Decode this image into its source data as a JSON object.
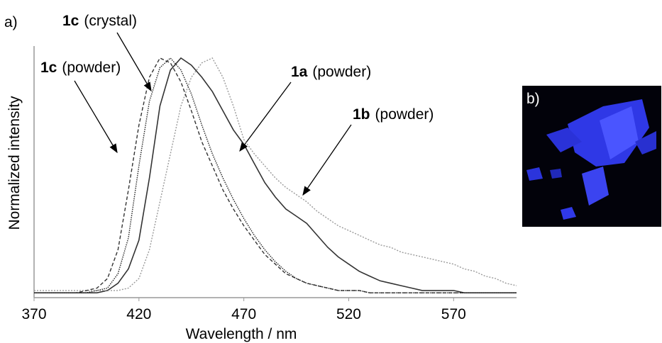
{
  "panel_a_label": "a)",
  "chart_data": {
    "type": "line",
    "x_label": "Wavelength / nm",
    "y_label": "Normalized intensity",
    "x": [
      370,
      375,
      380,
      385,
      390,
      395,
      400,
      405,
      410,
      415,
      420,
      425,
      430,
      435,
      440,
      445,
      450,
      455,
      460,
      465,
      470,
      475,
      480,
      485,
      490,
      495,
      500,
      505,
      510,
      515,
      520,
      525,
      530,
      535,
      540,
      545,
      550,
      555,
      560,
      565,
      570,
      575,
      580,
      585,
      590,
      595,
      600
    ],
    "xlim": [
      370,
      600
    ],
    "ylim": [
      0,
      1.05
    ],
    "xticks": [
      370,
      420,
      470,
      520,
      570
    ],
    "series": [
      {
        "name_bold": "1a",
        "name": "(powder)",
        "color": "#333333",
        "dash": "solid",
        "values": [
          0.02,
          0.02,
          0.02,
          0.02,
          0.02,
          0.02,
          0.02,
          0.03,
          0.06,
          0.12,
          0.24,
          0.5,
          0.8,
          0.95,
          1.0,
          0.97,
          0.92,
          0.86,
          0.78,
          0.7,
          0.64,
          0.56,
          0.48,
          0.42,
          0.37,
          0.34,
          0.31,
          0.26,
          0.21,
          0.17,
          0.14,
          0.11,
          0.09,
          0.07,
          0.06,
          0.05,
          0.04,
          0.03,
          0.03,
          0.03,
          0.03,
          0.02,
          0.02,
          0.02,
          0.02,
          0.02,
          0.02
        ]
      },
      {
        "name_bold": "1b",
        "name": "(powder)",
        "color": "#9a9a9a",
        "dash": "dotted",
        "values": [
          0.03,
          0.03,
          0.03,
          0.03,
          0.03,
          0.03,
          0.03,
          0.03,
          0.03,
          0.04,
          0.08,
          0.2,
          0.4,
          0.6,
          0.8,
          0.92,
          0.98,
          1.0,
          0.92,
          0.8,
          0.66,
          0.6,
          0.55,
          0.5,
          0.46,
          0.43,
          0.4,
          0.36,
          0.33,
          0.3,
          0.28,
          0.26,
          0.24,
          0.22,
          0.21,
          0.19,
          0.18,
          0.17,
          0.16,
          0.15,
          0.14,
          0.12,
          0.11,
          0.09,
          0.08,
          0.06,
          0.05
        ]
      },
      {
        "name_bold": "1c",
        "name": "(powder)",
        "color": "#333333",
        "dash": "dashed",
        "values": [
          0.02,
          0.02,
          0.02,
          0.02,
          0.02,
          0.03,
          0.04,
          0.08,
          0.2,
          0.45,
          0.72,
          0.92,
          1.0,
          0.98,
          0.9,
          0.78,
          0.65,
          0.55,
          0.45,
          0.37,
          0.3,
          0.24,
          0.18,
          0.14,
          0.1,
          0.08,
          0.06,
          0.05,
          0.04,
          0.03,
          0.03,
          0.03,
          0.02,
          0.02,
          0.02,
          0.02,
          0.02,
          0.02,
          0.02,
          0.02,
          0.02,
          0.02,
          0.02,
          0.02,
          0.02,
          0.02,
          0.02
        ]
      },
      {
        "name_bold": "1c",
        "name": "(crystal)",
        "color": "#222222",
        "dash": "fine",
        "values": [
          0.02,
          0.02,
          0.02,
          0.02,
          0.02,
          0.02,
          0.03,
          0.04,
          0.1,
          0.25,
          0.55,
          0.82,
          0.96,
          1.0,
          0.95,
          0.85,
          0.72,
          0.6,
          0.5,
          0.41,
          0.33,
          0.26,
          0.2,
          0.15,
          0.11,
          0.08,
          0.06,
          0.05,
          0.04,
          0.03,
          0.03,
          0.03,
          0.02,
          0.02,
          0.02,
          0.02,
          0.02,
          0.02,
          0.02,
          0.02,
          0.02,
          0.02,
          0.02,
          0.02,
          0.02,
          0.02,
          0.02
        ]
      }
    ]
  },
  "panel_b_label": "b)"
}
